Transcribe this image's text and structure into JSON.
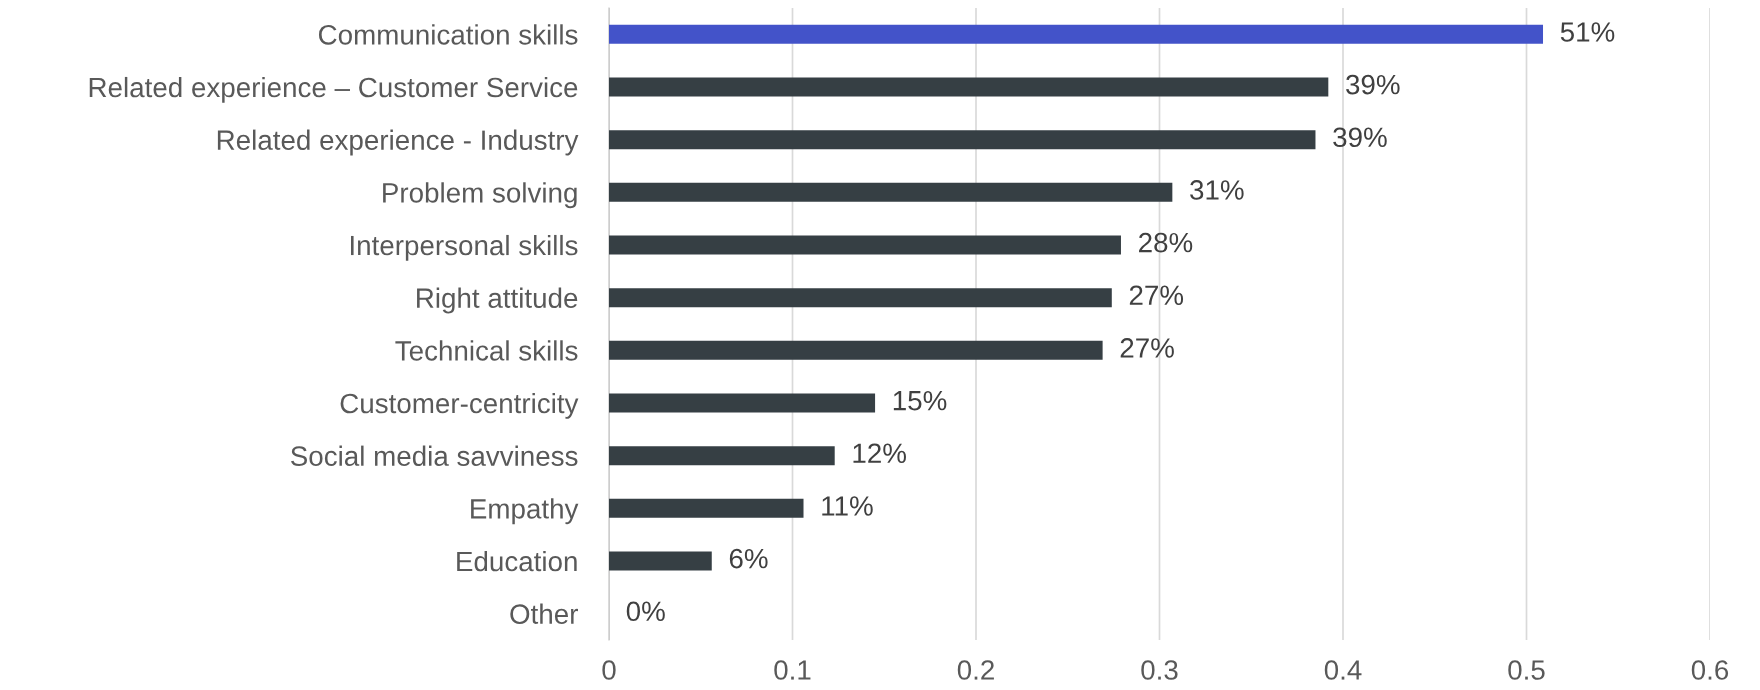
{
  "chart_data": {
    "type": "bar",
    "orientation": "horizontal",
    "categories": [
      "Communication skills",
      "Related experience – Customer Service",
      "Related experience - Industry",
      "Problem solving",
      "Interpersonal skills",
      "Right attitude",
      "Technical skills",
      "Customer-centricity",
      "Social media savviness",
      "Empathy",
      "Education",
      "Other"
    ],
    "values": [
      0.509,
      0.392,
      0.385,
      0.307,
      0.279,
      0.274,
      0.269,
      0.145,
      0.123,
      0.106,
      0.056,
      0
    ],
    "colors": [
      "#4353c9",
      "#363f44",
      "#363f44",
      "#363f44",
      "#363f44",
      "#363f44",
      "#363f44",
      "#363f44",
      "#363f44",
      "#363f44",
      "#363f44",
      "#363f44"
    ],
    "value_labels": [
      "51%",
      "39%",
      "39%",
      "31%",
      "28%",
      "27%",
      "27%",
      "15%",
      "12%",
      "11%",
      "6%",
      "0%"
    ],
    "xlim": [
      0,
      0.6
    ],
    "xticks": [
      0,
      0.1,
      0.2,
      0.3,
      0.4,
      0.5,
      0.6
    ],
    "grid": "x",
    "legend": false
  }
}
